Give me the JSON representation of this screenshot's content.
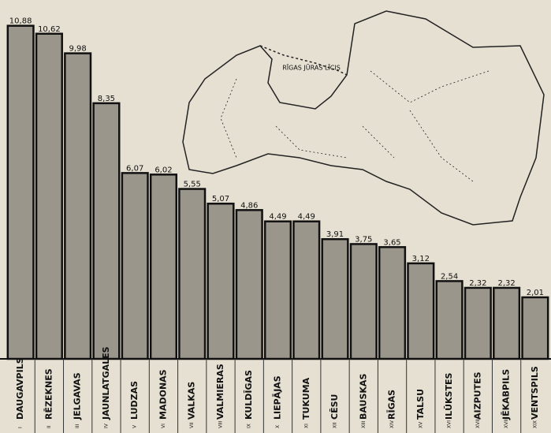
{
  "chart_data": {
    "type": "bar",
    "categories": [
      "DAUGAVPILS",
      "RĒZEKNES",
      "JELGAVAS",
      "JAUNLATGALES",
      "LUDZAS",
      "MADONAS",
      "VALKAS",
      "VALMIERAS",
      "KULDĪGAS",
      "LIEPĀJAS",
      "TUKUMA",
      "CĒSU",
      "BAUSKAS",
      "RĪGAS",
      "TALSU",
      "ILŪKSTES",
      "AIZPUTES",
      "JĒKABPILS",
      "VENTSPILS"
    ],
    "category_numerals": [
      "I",
      "II",
      "III",
      "IV",
      "V",
      "VI",
      "VII",
      "VIII",
      "IX",
      "X",
      "XI",
      "XII",
      "XIII",
      "XIV",
      "XV",
      "XVI",
      "XVII",
      "XVIII",
      "XIX"
    ],
    "values": [
      10.88,
      10.62,
      9.98,
      8.35,
      6.07,
      6.02,
      5.55,
      5.07,
      4.86,
      4.49,
      4.49,
      3.91,
      3.75,
      3.65,
      3.12,
      2.54,
      2.32,
      2.32,
      2.01
    ],
    "value_labels": [
      "10,88",
      "10,62",
      "9,98",
      "8,35",
      "6,07",
      "6,02",
      "5,55",
      "5,07",
      "4,86",
      "4,49",
      "4,49",
      "3,91",
      "3,75",
      "3,65",
      "3,12",
      "2,54",
      "2,32",
      "2,32",
      "2,01"
    ],
    "color": "#9b968c",
    "ylim": [
      0,
      11
    ],
    "map_annotation": "RĪGAS JŪRAS LĪCIS"
  }
}
